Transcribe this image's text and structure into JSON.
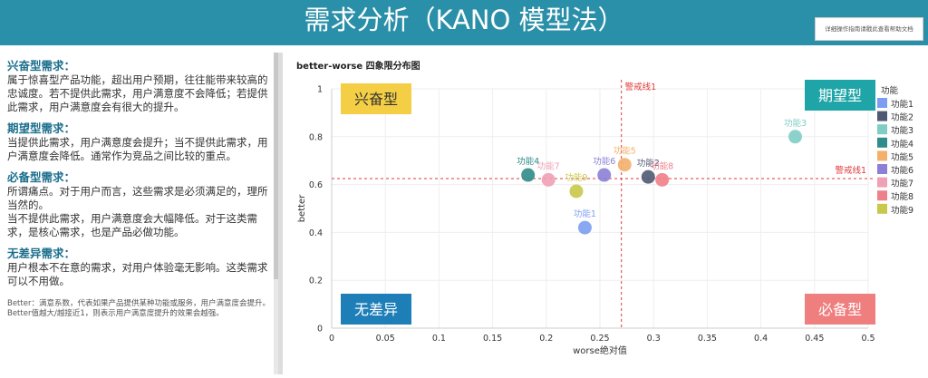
{
  "header": {
    "title": "需求分析（KANO 模型法）",
    "help_label": "详细操作指南请戳此查看帮助文档"
  },
  "sidebar": {
    "sections": [
      {
        "heading": "兴奋型需求：",
        "body": "属于惊喜型产品功能，超出用户预期，往往能带来较高的忠诚度。若不提供此需求，用户满意度不会降低；若提供此需求，用户满意度会有很大的提升。"
      },
      {
        "heading": "期望型需求：",
        "body": "当提供此需求，用户满意度会提升；当不提供此需求，用户满意度会降低。通常作为竞品之间比较的重点。"
      },
      {
        "heading": "必备型需求：",
        "body": "所谓痛点。对于用户而言，这些需求是必须满足的，理所当然的。\n当不提供此需求，用户满意度会大幅降低。对于这类需求，是核心需求，也是产品必做功能。"
      },
      {
        "heading": "无差异需求：",
        "body": "用户根本不在意的需求，对用户体验毫无影响。这类需求可以不用做。"
      }
    ],
    "note": "Better：满意系数，代表如果产品提供某种功能或服务，用户满意度会提升。Better值越大/越接近1，则表示用户满意度提升的效果会越强。"
  },
  "chart_data": {
    "type": "scatter",
    "title": "better-worse 四象限分布图",
    "xlabel": "worse绝对值",
    "ylabel": "better",
    "xlim": [
      0,
      0.5
    ],
    "ylim": [
      0,
      1
    ],
    "x_ticks": [
      "0",
      "0.05",
      "0.1",
      "0.15",
      "0.2",
      "0.25",
      "0.3",
      "0.35",
      "0.4",
      "0.45",
      "0.5"
    ],
    "y_ticks": [
      "0",
      "0.2",
      "0.4",
      "0.6",
      "0.8",
      "1"
    ],
    "grid": true,
    "legend_title": "功能",
    "legend_position": "right",
    "series": [
      {
        "name": "功能1",
        "color": "#7d9ef0",
        "x": 0.236,
        "y": 0.42
      },
      {
        "name": "功能2",
        "color": "#4e5a73",
        "x": 0.295,
        "y": 0.632
      },
      {
        "name": "功能3",
        "color": "#7fcdc4",
        "x": 0.432,
        "y": 0.8
      },
      {
        "name": "功能4",
        "color": "#2e8c8a",
        "x": 0.183,
        "y": 0.64
      },
      {
        "name": "功能5",
        "color": "#f2b06a",
        "x": 0.273,
        "y": 0.683
      },
      {
        "name": "功能6",
        "color": "#8b7fd6",
        "x": 0.254,
        "y": 0.64
      },
      {
        "name": "功能7",
        "color": "#f0a0b4",
        "x": 0.202,
        "y": 0.62
      },
      {
        "name": "功能8",
        "color": "#ef7f88",
        "x": 0.308,
        "y": 0.62
      },
      {
        "name": "功能9",
        "color": "#c8c84a",
        "x": 0.228,
        "y": 0.572
      }
    ],
    "warn_x": {
      "value": 0.27,
      "label": "警戒线1"
    },
    "warn_y": {
      "value": 0.625,
      "label": "警戒线1"
    },
    "quadrants": [
      {
        "label": "兴奋型",
        "bg": "#f4cf45",
        "fg": "#333333",
        "pos": "top-left"
      },
      {
        "label": "期望型",
        "bg": "#1fa5a8",
        "fg": "#ffffff",
        "pos": "top-right"
      },
      {
        "label": "无差异",
        "bg": "#1e7fb8",
        "fg": "#ffffff",
        "pos": "bottom-left"
      },
      {
        "label": "必备型",
        "bg": "#ef7f7f",
        "fg": "#ffffff",
        "pos": "bottom-right"
      }
    ]
  }
}
